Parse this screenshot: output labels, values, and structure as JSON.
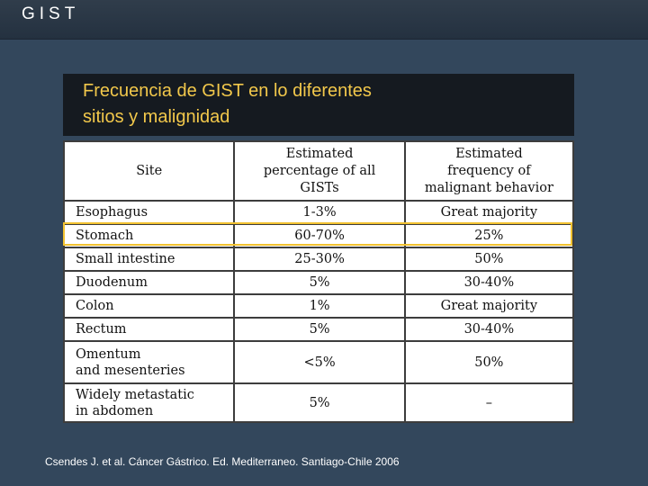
{
  "header": {
    "title": "GIST"
  },
  "slide": {
    "heading_line1": "Frecuencia de GIST en lo diferentes",
    "heading_line2": "sitios y malignidad",
    "source": "Csendes J. et al. Cáncer Gástrico. Ed. Mediterraneo. Santiago-Chile 2006"
  },
  "table": {
    "headers": {
      "site": "Site",
      "pct_line1": "Estimated",
      "pct_line2": "percentage of all",
      "pct_line3": "GISTs",
      "mal_line1": "Estimated",
      "mal_line2": "frequency of",
      "mal_line3": "malignant behavior"
    },
    "rows": [
      {
        "site": "Esophagus",
        "pct": "1-3%",
        "mal": "Great majority"
      },
      {
        "site": "Stomach",
        "pct": "60-70%",
        "mal": "25%"
      },
      {
        "site": "Small intestine",
        "pct": "25-30%",
        "mal": "50%"
      },
      {
        "site": "Duodenum",
        "pct": "5%",
        "mal": "30-40%"
      },
      {
        "site": "Colon",
        "pct": "1%",
        "mal": "Great majority"
      },
      {
        "site": "Rectum",
        "pct": "5%",
        "mal": "30-40%"
      },
      {
        "site_line1": "Omentum",
        "site_line2": "and mesenteries",
        "pct": "<5%",
        "mal": "50%"
      },
      {
        "site_line1": "Widely metastatic",
        "site_line2": "in abdomen",
        "pct": "5%",
        "mal": "–"
      }
    ]
  },
  "colors": {
    "background": "#33475c",
    "heading_text": "#f2c84b",
    "highlight_border": "#f2c230"
  }
}
